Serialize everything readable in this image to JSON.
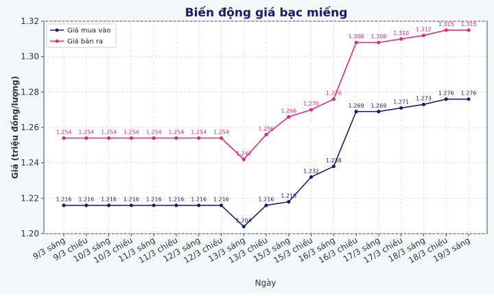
{
  "chart_data": {
    "type": "line",
    "title": "Biến động giá bạc miếng",
    "xlabel": "Ngày",
    "ylabel": "Giá (triệu đồng/lượng)",
    "ylim": [
      1.2,
      1.32
    ],
    "yticks": [
      "1.20",
      "1.22",
      "1.24",
      "1.26",
      "1.28",
      "1.30",
      "1.32"
    ],
    "grid": true,
    "legend_position": "top-left",
    "categories": [
      "9/3 sáng",
      "9/3 chiều",
      "10/3 sáng",
      "10/3 chiều",
      "11/3 sáng",
      "11/3 chiều",
      "12/3 sáng",
      "12/3 chiều",
      "13/3 sáng",
      "13/3 chiều",
      "15/3 sáng",
      "15/3 chiều",
      "16/3 sáng",
      "16/3 chiều",
      "17/3 sáng",
      "17/3 chiều",
      "18/3 sáng",
      "18/3 chiều",
      "19/3 sáng"
    ],
    "series": [
      {
        "name": "Giá mua vào",
        "color": "#1a1a6e",
        "values": [
          1.216,
          1.216,
          1.216,
          1.216,
          1.216,
          1.216,
          1.216,
          1.216,
          1.204,
          1.216,
          1.218,
          1.232,
          1.238,
          1.269,
          1.269,
          1.271,
          1.273,
          1.276,
          1.276
        ],
        "labels": [
          "1.216",
          "1.216",
          "1.216",
          "1.216",
          "1.216",
          "1.216",
          "1.216",
          "1.216",
          "1.204",
          "1.216",
          "1.218",
          "1.232",
          "1.238",
          "1.269",
          "1.269",
          "1.271",
          "1.273",
          "1.276",
          "1.276"
        ]
      },
      {
        "name": "Giá bán ra",
        "color": "#e5267a",
        "values": [
          1.254,
          1.254,
          1.254,
          1.254,
          1.254,
          1.254,
          1.254,
          1.254,
          1.242,
          1.256,
          1.266,
          1.27,
          1.276,
          1.308,
          1.308,
          1.31,
          1.312,
          1.315,
          1.315
        ],
        "labels": [
          "1.254",
          "1.254",
          "1.254",
          "1.254",
          "1.254",
          "1.254",
          "1.254",
          "1.254",
          "1.242",
          "1.256",
          "1.266",
          "1.270",
          "1.276",
          "1.308",
          "1.308",
          "1.310",
          "1.312",
          "1.315",
          "1.315"
        ]
      }
    ]
  }
}
